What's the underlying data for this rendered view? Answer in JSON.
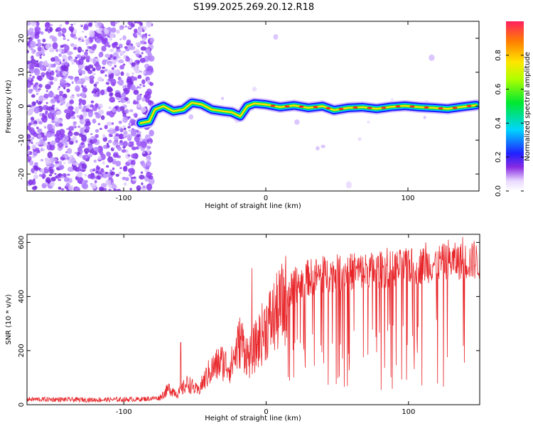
{
  "title": "S199.2025.269.20.12.R18",
  "chart_data": [
    {
      "type": "heatmap",
      "name": "spectrogram",
      "xlabel": "Height of straight line (km)",
      "ylabel": "Frequency (Hz)",
      "xlim": [
        -168,
        150
      ],
      "ylim": [
        -25,
        25
      ],
      "xticks": [
        -100,
        0,
        100
      ],
      "yticks": [
        -20,
        -10,
        0,
        10,
        20
      ],
      "ridge": [
        [
          -88,
          -5
        ],
        [
          -82,
          -4.5
        ],
        [
          -78,
          -1
        ],
        [
          -72,
          0
        ],
        [
          -65,
          -1.5
        ],
        [
          -58,
          -1
        ],
        [
          -52,
          1
        ],
        [
          -45,
          0.5
        ],
        [
          -38,
          -1
        ],
        [
          -30,
          -1.5
        ],
        [
          -24,
          -1.8
        ],
        [
          -18,
          -3
        ],
        [
          -13,
          0
        ],
        [
          -8,
          0.8
        ],
        [
          0,
          0.5
        ],
        [
          10,
          -0.3
        ],
        [
          20,
          0.2
        ],
        [
          30,
          -0.5
        ],
        [
          40,
          0
        ],
        [
          48,
          -1.2
        ],
        [
          58,
          -0.5
        ],
        [
          68,
          -0.3
        ],
        [
          78,
          -0.8
        ],
        [
          88,
          -0.2
        ],
        [
          98,
          0.1
        ],
        [
          108,
          -0.3
        ],
        [
          118,
          -0.5
        ],
        [
          128,
          -0.8
        ],
        [
          138,
          -0.2
        ],
        [
          148,
          0.3
        ]
      ],
      "colorbar": {
        "label": "Normalized spectral amplitude",
        "range": [
          0.0,
          1.0
        ],
        "ticks": [
          "0.0",
          "0.2",
          "0.4",
          "0.6",
          "0.8"
        ],
        "tick_values": [
          0.0,
          0.2,
          0.4,
          0.6,
          0.8
        ]
      }
    },
    {
      "type": "line",
      "name": "snr",
      "xlabel": "Height of straight line (km)",
      "ylabel": "SNR (10 * v/v)",
      "xlim": [
        -168,
        150
      ],
      "ylim": [
        0,
        630
      ],
      "xticks": [
        -100,
        0,
        100
      ],
      "yticks": [
        0,
        200,
        400,
        600
      ],
      "series": [
        {
          "name": "SNR",
          "color": "#e8262a",
          "envelope": [
            [
              -168,
              20
            ],
            [
              -120,
              18
            ],
            [
              -90,
              20
            ],
            [
              -75,
              25
            ],
            [
              -68,
              60
            ],
            [
              -62,
              40
            ],
            [
              -55,
              80
            ],
            [
              -48,
              50
            ],
            [
              -40,
              120
            ],
            [
              -32,
              160
            ],
            [
              -25,
              140
            ],
            [
              -18,
              240
            ],
            [
              -12,
              170
            ],
            [
              -6,
              230
            ],
            [
              0,
              290
            ],
            [
              8,
              340
            ],
            [
              15,
              400
            ],
            [
              22,
              450
            ],
            [
              30,
              470
            ],
            [
              40,
              480
            ],
            [
              55,
              490
            ],
            [
              70,
              495
            ],
            [
              85,
              500
            ],
            [
              100,
              510
            ],
            [
              115,
              520
            ],
            [
              130,
              530
            ],
            [
              150,
              530
            ]
          ],
          "spikes": [
            [
              -60,
              230
            ],
            [
              -10,
              505
            ],
            [
              -13,
              170
            ],
            [
              28,
              520
            ],
            [
              40,
              550
            ],
            [
              62,
              560
            ],
            [
              85,
              580
            ],
            [
              100,
              570
            ],
            [
              112,
              600
            ],
            [
              128,
              610
            ],
            [
              138,
              620
            ],
            [
              146,
              605
            ]
          ]
        }
      ]
    }
  ]
}
